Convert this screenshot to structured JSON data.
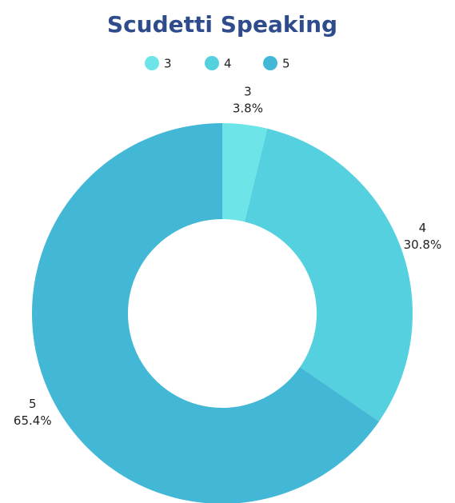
{
  "chart_data": {
    "type": "donut",
    "title": "Scudetti Speaking",
    "categories": [
      "3",
      "4",
      "5"
    ],
    "values": [
      3.8,
      30.8,
      65.4
    ],
    "value_labels": [
      "3.8%",
      "30.8%",
      "65.4%"
    ],
    "colors": [
      "#6ce4e8",
      "#55d0df",
      "#43b8d6"
    ],
    "legend": "top"
  }
}
